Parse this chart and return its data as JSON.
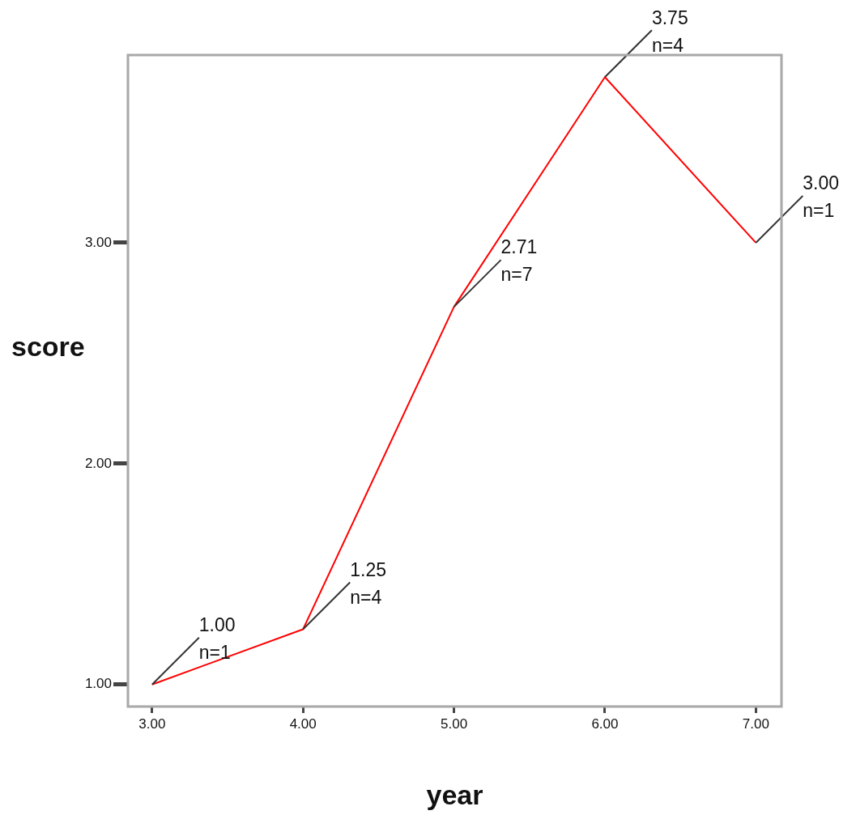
{
  "chart_data": {
    "type": "line",
    "xlabel": "year",
    "ylabel": "score",
    "x": [
      3,
      4,
      5,
      6,
      7
    ],
    "series": [
      {
        "color": "#ff0000",
        "values": [
          1.0,
          1.25,
          2.71,
          3.75,
          3.0
        ],
        "value_labels": [
          "1.00\nn=1",
          "1.25\nn=4",
          "2.71\nn=7",
          "3.75\nn=4",
          "3.00\nn=1"
        ]
      }
    ],
    "xlim": [
      2.84,
      7.17
    ],
    "ylim": [
      0.9,
      3.85
    ],
    "xticks": [
      {
        "value": 3,
        "label": "3.00"
      },
      {
        "value": 4,
        "label": "4.00"
      },
      {
        "value": 5,
        "label": "5.00"
      },
      {
        "value": 6,
        "label": "6.00"
      },
      {
        "value": 7,
        "label": "7.00"
      }
    ],
    "yticks": [
      {
        "value": 1,
        "label": "1.00"
      },
      {
        "value": 2,
        "label": "2.00"
      },
      {
        "value": 3,
        "label": "3.00"
      }
    ],
    "grid": false,
    "legend": false
  }
}
